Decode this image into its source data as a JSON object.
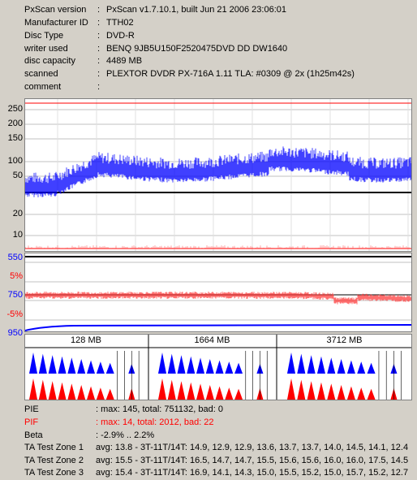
{
  "info": [
    {
      "label": "PxScan version",
      "value": "PxScan v1.7.10.1, built Jun 21 2006 23:06:01"
    },
    {
      "label": "Manufacturer ID",
      "value": "TTH02"
    },
    {
      "label": "Disc Type",
      "value": "DVD-R"
    },
    {
      "label": "writer used",
      "value": "BENQ 9JB5U150F2520475DVD DD DW1640"
    },
    {
      "label": "disc capacity",
      "value": "4489 MB"
    },
    {
      "label": "scanned",
      "value": "PLEXTOR DVDR PX-716A 1.11 TLA: #0309 @ 2x (1h25m42s)"
    },
    {
      "label": "comment",
      "value": ""
    }
  ],
  "colon": ":",
  "axis_labels": {
    "pie_250": "250",
    "pie_200": "200",
    "pie_150": "150",
    "pie_100": "100",
    "pie_50": "50",
    "pif_20": "20",
    "pif_10": "10",
    "jit_550": "550",
    "jit_p5": "5%",
    "jit_750": "750",
    "jit_m5": "-5%",
    "jit_950": "950"
  },
  "zones": [
    "128 MB",
    "1664 MB",
    "3712 MB"
  ],
  "stats": {
    "pie": {
      "label": "PIE",
      "value": ": max: 145, total: 751132, bad: 0"
    },
    "pif": {
      "label": "PIF",
      "value": ": max: 14, total: 2012, bad: 22"
    },
    "beta": {
      "label": "Beta",
      "value": ": -2.9% .. 2.2%"
    },
    "ta1": {
      "label": "TA Test Zone 1",
      "value": "avg: 13.8 - 3T-11T/14T: 14.9, 12.9, 12.9, 13.6, 13.7, 13.7, 14.0, 14.5, 14.1, 12.4"
    },
    "ta2": {
      "label": "TA Test Zone 2",
      "value": "avg: 15.5 - 3T-11T/14T: 16.5, 14.7, 14.7, 15.5, 15.6, 15.6, 16.0, 16.0, 17.5, 14.5"
    },
    "ta3": {
      "label": "TA Test Zone 3",
      "value": "avg: 15.4 - 3T-11T/14T: 16.9, 14.1, 14.3, 15.0, 15.5, 15.2, 15.0, 15.7, 15.2, 12.7"
    }
  },
  "colors": {
    "pie": "#0000ff",
    "pif": "#ff0000",
    "background": "#d4d0c8"
  }
}
